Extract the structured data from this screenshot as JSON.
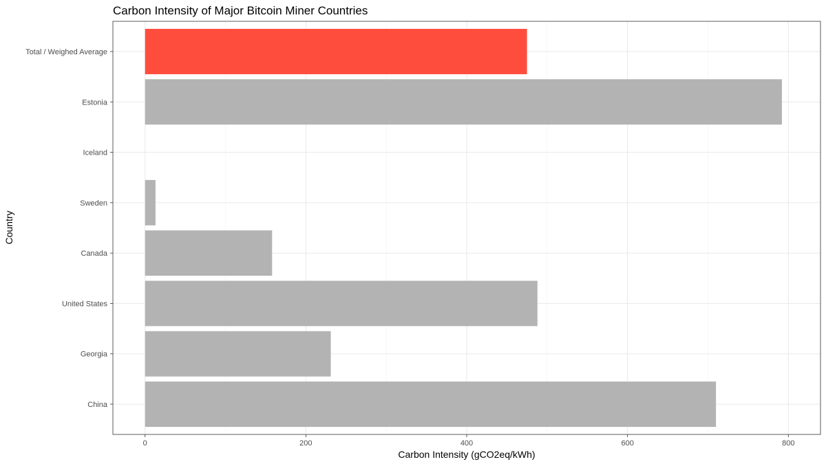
{
  "chart_data": {
    "type": "bar",
    "orientation": "horizontal",
    "title": "Carbon Intensity of Major Bitcoin Miner Countries",
    "xlabel": "Carbon Intensity (gCO2eq/kWh)",
    "ylabel": "Country",
    "categories": [
      "Total / Weighed Average",
      "Estonia",
      "Iceland",
      "Sweden",
      "Canada",
      "United States",
      "Georgia",
      "China"
    ],
    "values": [
      475,
      792,
      0,
      13,
      158,
      488,
      231,
      710
    ],
    "highlight_category": "Total / Weighed Average",
    "xlim": [
      -40,
      840
    ],
    "xticks": [
      0,
      200,
      400,
      600,
      800
    ],
    "grid": true,
    "legend": "none",
    "colors": {
      "bar": "#b3b3b3",
      "highlight": "#ff4d3d"
    }
  }
}
